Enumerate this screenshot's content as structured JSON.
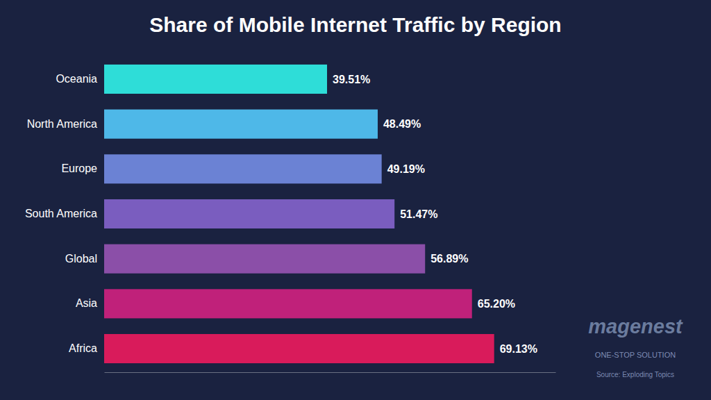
{
  "chart_data": {
    "type": "bar",
    "orientation": "horizontal",
    "title": "Share of Mobile Internet Traffic by Region",
    "categories": [
      "Africa",
      "Asia",
      "Global",
      "South America",
      "Europe",
      "North America",
      "Oceania"
    ],
    "values": [
      69.13,
      65.2,
      56.89,
      51.47,
      49.19,
      48.49,
      39.51
    ],
    "value_labels": [
      "69.13%",
      "65.20%",
      "56.89%",
      "51.47%",
      "49.19%",
      "48.49%",
      "39.51%"
    ],
    "colors": [
      "#D91B5B",
      "#C0217A",
      "#8B4FA8",
      "#7A5DBF",
      "#6B82D4",
      "#4EB8E8",
      "#2EDDD8"
    ],
    "xlim": [
      0,
      80
    ],
    "data_labels": true,
    "tick_labels": "y",
    "grid": false,
    "annotations": [
      "magenest",
      "ONE-STOP SOLUTION",
      "Source: Exploding Topics"
    ]
  }
}
